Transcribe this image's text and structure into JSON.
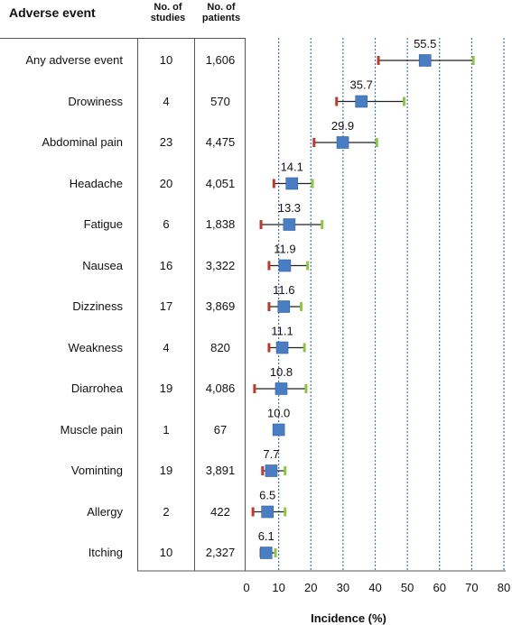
{
  "headers": {
    "event": "Adverse event",
    "studies": [
      "No. of",
      "studies"
    ],
    "patients": [
      "No. of",
      "patients"
    ]
  },
  "chart_data": {
    "type": "forest",
    "xlabel": "Incidence (%)",
    "xlim": [
      0,
      80
    ],
    "xticks": [
      0,
      10,
      20,
      30,
      40,
      50,
      60,
      70,
      80
    ],
    "grid": "vertical-dotted",
    "rows": [
      {
        "event": "Any adverse event",
        "studies": "10",
        "patients": "1,606",
        "estimate": 55.5,
        "label": "55.5",
        "ci": [
          41.0,
          70.5
        ]
      },
      {
        "event": "Drowiness",
        "studies": "4",
        "patients": "570",
        "estimate": 35.7,
        "label": "35.7",
        "ci": [
          28.0,
          49.0
        ]
      },
      {
        "event": "Abdominal pain",
        "studies": "23",
        "patients": "4,475",
        "estimate": 29.9,
        "label": "29.9",
        "ci": [
          21.0,
          40.5
        ]
      },
      {
        "event": "Headache",
        "studies": "20",
        "patients": "4,051",
        "estimate": 14.1,
        "label": "14.1",
        "ci": [
          8.5,
          20.5
        ]
      },
      {
        "event": "Fatigue",
        "studies": "6",
        "patients": "1,838",
        "estimate": 13.3,
        "label": "13.3",
        "ci": [
          4.5,
          23.5
        ]
      },
      {
        "event": "Nausea",
        "studies": "16",
        "patients": "3,322",
        "estimate": 11.9,
        "label": "11.9",
        "ci": [
          7.0,
          19.0
        ]
      },
      {
        "event": "Dizziness",
        "studies": "17",
        "patients": "3,869",
        "estimate": 11.6,
        "label": "11.6",
        "ci": [
          7.0,
          17.0
        ]
      },
      {
        "event": "Weakness",
        "studies": "4",
        "patients": "820",
        "estimate": 11.1,
        "label": "11.1",
        "ci": [
          7.0,
          18.0
        ]
      },
      {
        "event": "Diarrohea",
        "studies": "19",
        "patients": "4,086",
        "estimate": 10.8,
        "label": "10.8",
        "ci": [
          2.5,
          18.5
        ]
      },
      {
        "event": "Muscle pain",
        "studies": "1",
        "patients": "67",
        "estimate": 10.0,
        "label": "10.0",
        "ci": null
      },
      {
        "event": "Vominting",
        "studies": "19",
        "patients": "3,891",
        "estimate": 7.7,
        "label": "7.7",
        "ci": [
          5.0,
          12.0
        ]
      },
      {
        "event": "Allergy",
        "studies": "2",
        "patients": "422",
        "estimate": 6.5,
        "label": "6.5",
        "ci": [
          2.0,
          12.0
        ]
      },
      {
        "event": "Itching",
        "studies": "10",
        "patients": "2,327",
        "estimate": 6.1,
        "label": "6.1",
        "ci": [
          4.5,
          9.0
        ]
      }
    ],
    "colors": {
      "marker": "#4a7ec4",
      "marker_edge": "#2f5f9e",
      "lower_cap": "#c0392b",
      "upper_cap": "#8dc63f",
      "grid": "#3a78c8",
      "ci_line": "#222222"
    }
  }
}
